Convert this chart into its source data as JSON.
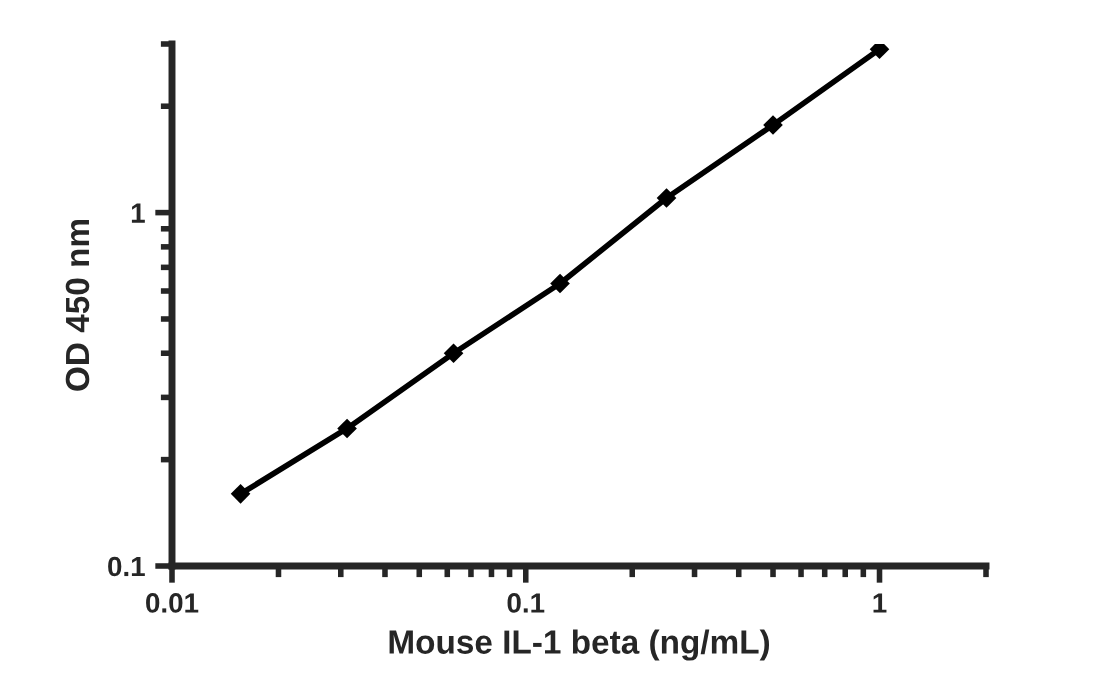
{
  "chart_data": {
    "type": "line",
    "xlabel": "Mouse IL-1 beta (ng/mL)",
    "ylabel": "OD 450 nm",
    "log": "xy",
    "xlim": [
      0.01,
      2
    ],
    "ylim": [
      0.1,
      3
    ],
    "xticks": [
      0.01,
      0.1,
      1
    ],
    "yticks": [
      0.1,
      1
    ],
    "marker": "diamond",
    "line_style": "solid",
    "grid": false,
    "legend": false,
    "series": [
      {
        "color": "#000000",
        "x": [
          0.015625,
          0.03125,
          0.0625,
          0.125,
          0.25,
          0.5,
          1
        ],
        "values": [
          0.16,
          0.245,
          0.4,
          0.63,
          1.1,
          1.77,
          2.9
        ]
      }
    ]
  }
}
